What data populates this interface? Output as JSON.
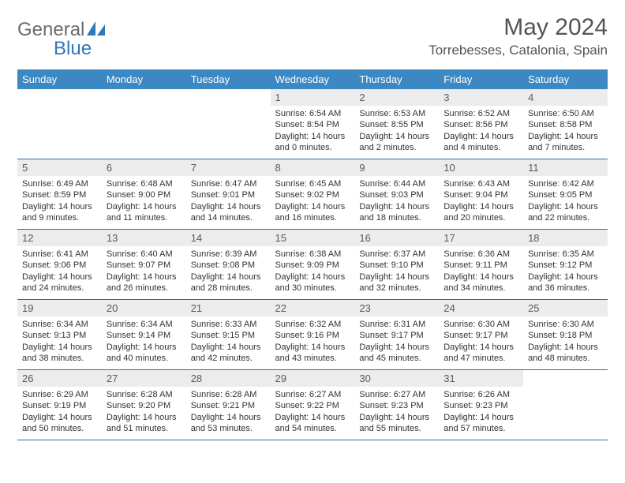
{
  "brand": {
    "part1": "General",
    "part2": "Blue"
  },
  "title": "May 2024",
  "location": "Torrebesses, Catalonia, Spain",
  "weekdays": [
    "Sunday",
    "Monday",
    "Tuesday",
    "Wednesday",
    "Thursday",
    "Friday",
    "Saturday"
  ],
  "colors": {
    "header_bg": "#3b88c3",
    "header_text": "#ffffff",
    "daynum_bg": "#ececec",
    "border": "#3b6a99",
    "brand_gray": "#6b6b6b",
    "brand_blue": "#2f78b9"
  },
  "weeks": [
    [
      null,
      null,
      null,
      {
        "n": "1",
        "sr": "6:54 AM",
        "ss": "8:54 PM",
        "dl": "14 hours and 0 minutes."
      },
      {
        "n": "2",
        "sr": "6:53 AM",
        "ss": "8:55 PM",
        "dl": "14 hours and 2 minutes."
      },
      {
        "n": "3",
        "sr": "6:52 AM",
        "ss": "8:56 PM",
        "dl": "14 hours and 4 minutes."
      },
      {
        "n": "4",
        "sr": "6:50 AM",
        "ss": "8:58 PM",
        "dl": "14 hours and 7 minutes."
      }
    ],
    [
      {
        "n": "5",
        "sr": "6:49 AM",
        "ss": "8:59 PM",
        "dl": "14 hours and 9 minutes."
      },
      {
        "n": "6",
        "sr": "6:48 AM",
        "ss": "9:00 PM",
        "dl": "14 hours and 11 minutes."
      },
      {
        "n": "7",
        "sr": "6:47 AM",
        "ss": "9:01 PM",
        "dl": "14 hours and 14 minutes."
      },
      {
        "n": "8",
        "sr": "6:45 AM",
        "ss": "9:02 PM",
        "dl": "14 hours and 16 minutes."
      },
      {
        "n": "9",
        "sr": "6:44 AM",
        "ss": "9:03 PM",
        "dl": "14 hours and 18 minutes."
      },
      {
        "n": "10",
        "sr": "6:43 AM",
        "ss": "9:04 PM",
        "dl": "14 hours and 20 minutes."
      },
      {
        "n": "11",
        "sr": "6:42 AM",
        "ss": "9:05 PM",
        "dl": "14 hours and 22 minutes."
      }
    ],
    [
      {
        "n": "12",
        "sr": "6:41 AM",
        "ss": "9:06 PM",
        "dl": "14 hours and 24 minutes."
      },
      {
        "n": "13",
        "sr": "6:40 AM",
        "ss": "9:07 PM",
        "dl": "14 hours and 26 minutes."
      },
      {
        "n": "14",
        "sr": "6:39 AM",
        "ss": "9:08 PM",
        "dl": "14 hours and 28 minutes."
      },
      {
        "n": "15",
        "sr": "6:38 AM",
        "ss": "9:09 PM",
        "dl": "14 hours and 30 minutes."
      },
      {
        "n": "16",
        "sr": "6:37 AM",
        "ss": "9:10 PM",
        "dl": "14 hours and 32 minutes."
      },
      {
        "n": "17",
        "sr": "6:36 AM",
        "ss": "9:11 PM",
        "dl": "14 hours and 34 minutes."
      },
      {
        "n": "18",
        "sr": "6:35 AM",
        "ss": "9:12 PM",
        "dl": "14 hours and 36 minutes."
      }
    ],
    [
      {
        "n": "19",
        "sr": "6:34 AM",
        "ss": "9:13 PM",
        "dl": "14 hours and 38 minutes."
      },
      {
        "n": "20",
        "sr": "6:34 AM",
        "ss": "9:14 PM",
        "dl": "14 hours and 40 minutes."
      },
      {
        "n": "21",
        "sr": "6:33 AM",
        "ss": "9:15 PM",
        "dl": "14 hours and 42 minutes."
      },
      {
        "n": "22",
        "sr": "6:32 AM",
        "ss": "9:16 PM",
        "dl": "14 hours and 43 minutes."
      },
      {
        "n": "23",
        "sr": "6:31 AM",
        "ss": "9:17 PM",
        "dl": "14 hours and 45 minutes."
      },
      {
        "n": "24",
        "sr": "6:30 AM",
        "ss": "9:17 PM",
        "dl": "14 hours and 47 minutes."
      },
      {
        "n": "25",
        "sr": "6:30 AM",
        "ss": "9:18 PM",
        "dl": "14 hours and 48 minutes."
      }
    ],
    [
      {
        "n": "26",
        "sr": "6:29 AM",
        "ss": "9:19 PM",
        "dl": "14 hours and 50 minutes."
      },
      {
        "n": "27",
        "sr": "6:28 AM",
        "ss": "9:20 PM",
        "dl": "14 hours and 51 minutes."
      },
      {
        "n": "28",
        "sr": "6:28 AM",
        "ss": "9:21 PM",
        "dl": "14 hours and 53 minutes."
      },
      {
        "n": "29",
        "sr": "6:27 AM",
        "ss": "9:22 PM",
        "dl": "14 hours and 54 minutes."
      },
      {
        "n": "30",
        "sr": "6:27 AM",
        "ss": "9:23 PM",
        "dl": "14 hours and 55 minutes."
      },
      {
        "n": "31",
        "sr": "6:26 AM",
        "ss": "9:23 PM",
        "dl": "14 hours and 57 minutes."
      },
      null
    ]
  ],
  "labels": {
    "sunrise": "Sunrise: ",
    "sunset": "Sunset: ",
    "daylight": "Daylight: "
  }
}
